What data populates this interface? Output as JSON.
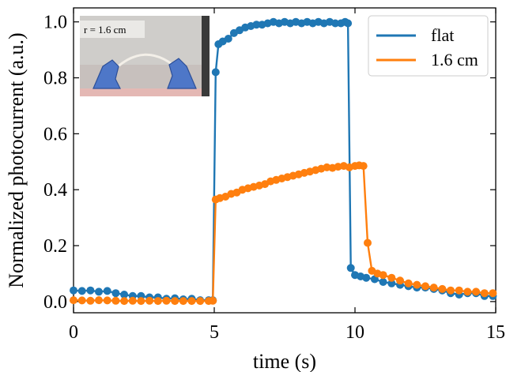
{
  "chart_data": {
    "type": "line",
    "xlabel": "time (s)",
    "ylabel": "Normalized photocurrent (a.u.)",
    "xlim": [
      0,
      15
    ],
    "ylim": [
      -0.04,
      1.05
    ],
    "xticks": [
      0,
      5,
      10,
      15
    ],
    "yticks": [
      0.0,
      0.2,
      0.4,
      0.6,
      0.8,
      1.0
    ],
    "xtick_labels": [
      "0",
      "5",
      "10",
      "15"
    ],
    "ytick_labels": [
      "0.0",
      "0.2",
      "0.4",
      "0.6",
      "0.8",
      "1.0"
    ],
    "grid": false,
    "legend_position": "top-right",
    "series": [
      {
        "name": "flat",
        "color": "#1f77b4",
        "x": [
          0,
          0.3,
          0.6,
          0.9,
          1.2,
          1.5,
          1.8,
          2.1,
          2.4,
          2.7,
          3.0,
          3.3,
          3.6,
          3.9,
          4.2,
          4.5,
          4.8,
          4.95,
          5.05,
          5.15,
          5.3,
          5.5,
          5.7,
          5.9,
          6.1,
          6.3,
          6.5,
          6.7,
          6.9,
          7.1,
          7.3,
          7.5,
          7.7,
          7.9,
          8.1,
          8.3,
          8.5,
          8.7,
          8.9,
          9.1,
          9.3,
          9.5,
          9.65,
          9.75,
          9.85,
          10.0,
          10.2,
          10.4,
          10.7,
          11.0,
          11.3,
          11.6,
          11.9,
          12.2,
          12.5,
          12.8,
          13.1,
          13.4,
          13.7,
          14.0,
          14.3,
          14.6,
          14.9
        ],
        "y": [
          0.04,
          0.038,
          0.04,
          0.035,
          0.038,
          0.03,
          0.025,
          0.02,
          0.02,
          0.015,
          0.015,
          0.01,
          0.012,
          0.008,
          0.01,
          0.005,
          0.005,
          0.005,
          0.82,
          0.92,
          0.93,
          0.94,
          0.96,
          0.97,
          0.98,
          0.985,
          0.99,
          0.99,
          0.995,
          1.0,
          0.995,
          1.0,
          0.995,
          1.0,
          0.995,
          1.0,
          0.995,
          1.0,
          0.995,
          1.0,
          0.995,
          0.995,
          1.0,
          0.995,
          0.12,
          0.095,
          0.09,
          0.085,
          0.08,
          0.07,
          0.065,
          0.06,
          0.055,
          0.05,
          0.05,
          0.045,
          0.04,
          0.03,
          0.025,
          0.03,
          0.03,
          0.02,
          0.02
        ]
      },
      {
        "name": "1.6 cm",
        "color": "#ff7f0e",
        "x": [
          0,
          0.3,
          0.6,
          0.9,
          1.2,
          1.5,
          1.8,
          2.1,
          2.4,
          2.7,
          3.0,
          3.3,
          3.6,
          3.9,
          4.2,
          4.5,
          4.8,
          4.95,
          5.05,
          5.2,
          5.4,
          5.6,
          5.8,
          6.0,
          6.2,
          6.4,
          6.6,
          6.8,
          7.0,
          7.2,
          7.4,
          7.6,
          7.8,
          8.0,
          8.2,
          8.4,
          8.6,
          8.8,
          9.0,
          9.2,
          9.4,
          9.6,
          9.8,
          10.0,
          10.15,
          10.3,
          10.45,
          10.6,
          10.8,
          11.0,
          11.3,
          11.6,
          11.9,
          12.2,
          12.5,
          12.8,
          13.1,
          13.4,
          13.7,
          14.0,
          14.3,
          14.6,
          14.9
        ],
        "y": [
          0.005,
          0.004,
          0.003,
          0.005,
          0.004,
          0.003,
          0.002,
          0.003,
          0.002,
          0.003,
          0.002,
          0.003,
          0.002,
          0.002,
          0.002,
          0.002,
          0.002,
          0.003,
          0.365,
          0.37,
          0.375,
          0.385,
          0.39,
          0.4,
          0.405,
          0.41,
          0.415,
          0.42,
          0.43,
          0.435,
          0.44,
          0.445,
          0.45,
          0.455,
          0.46,
          0.465,
          0.47,
          0.475,
          0.48,
          0.478,
          0.482,
          0.485,
          0.48,
          0.485,
          0.487,
          0.485,
          0.21,
          0.11,
          0.1,
          0.095,
          0.085,
          0.075,
          0.065,
          0.06,
          0.055,
          0.05,
          0.045,
          0.04,
          0.04,
          0.035,
          0.035,
          0.03,
          0.03
        ]
      }
    ],
    "inset": {
      "label": "r = 1.6 cm"
    }
  }
}
